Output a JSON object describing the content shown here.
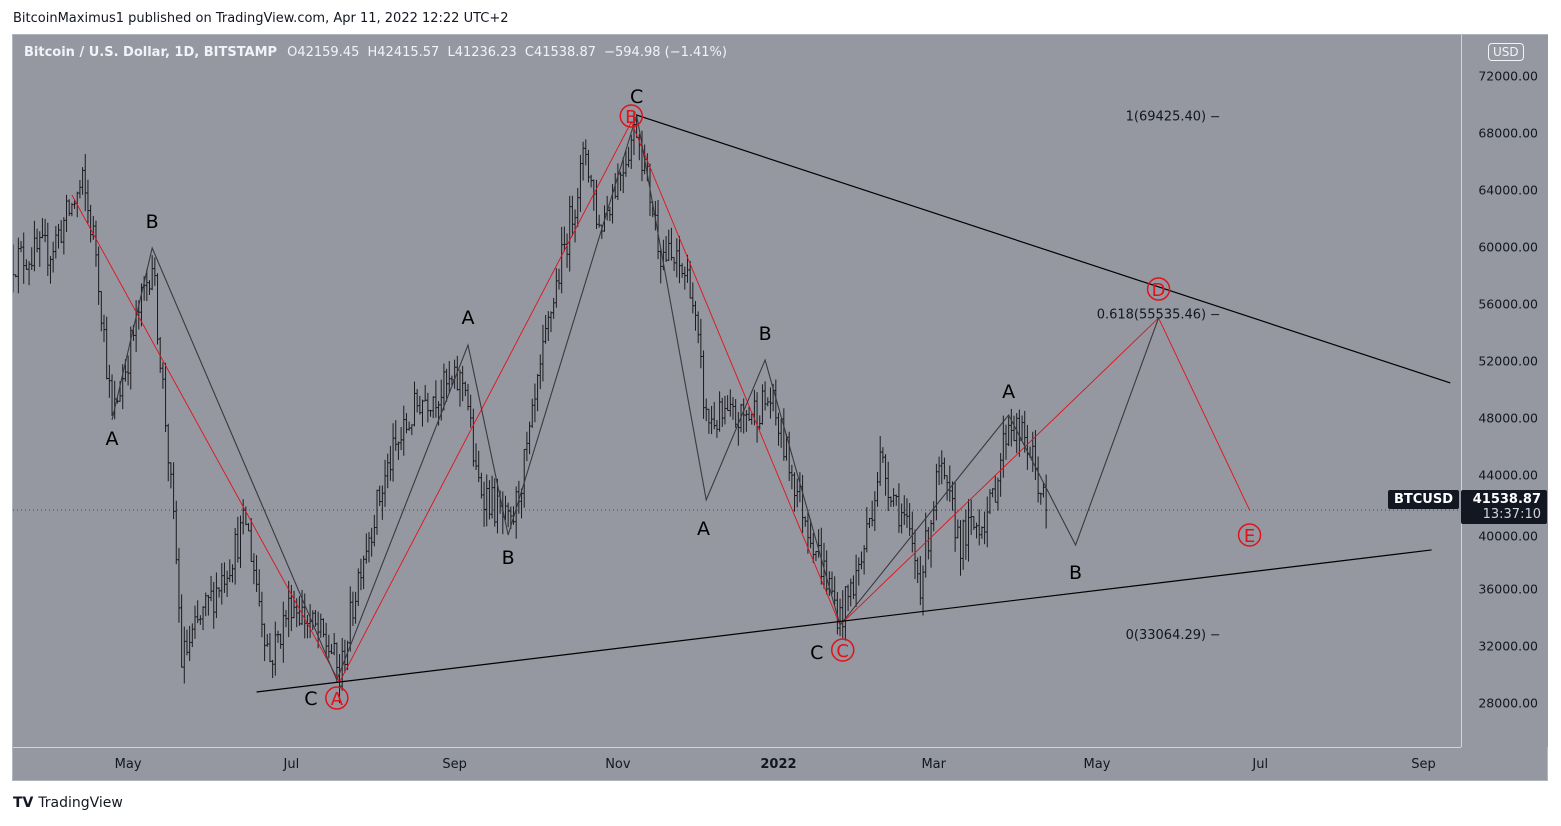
{
  "header": {
    "published": "BitcoinMaximus1 published on TradingView.com, Apr 11, 2022 12:22 UTC+2"
  },
  "legend": {
    "symbol": "Bitcoin / U.S. Dollar, 1D, BITSTAMP",
    "o_label": "O",
    "o": "42159.45",
    "h_label": "H",
    "h": "42415.57",
    "l_label": "L",
    "l": "41236.23",
    "c_label": "C",
    "c": "41538.87",
    "change": "−594.98 (−1.41%)"
  },
  "price_axis": {
    "currency": "USD",
    "ticks": [
      "72000.00",
      "68000.00",
      "64000.00",
      "60000.00",
      "56000.00",
      "52000.00",
      "48000.00",
      "44000.00",
      "40000.00",
      "36000.00",
      "32000.00",
      "28000.00"
    ]
  },
  "last_price": {
    "symbol": "BTCUSD",
    "price": "41538.87",
    "countdown": "13:37:10"
  },
  "footer": {
    "logo": "TradingView"
  },
  "colors": {
    "background": "#9598a1",
    "bars": "#1b1b1f",
    "red": "#e0121b",
    "wave": "#3a3a3e"
  },
  "chart_data": {
    "type": "ohlc",
    "title": "Bitcoin / U.S. Dollar, 1D, BITSTAMP",
    "x_unit": "days since 2021-05-01",
    "ylim": [
      24912,
      74877
    ],
    "xlim": [
      -43,
      498
    ],
    "time_ticks": [
      {
        "label": "May",
        "day": 0
      },
      {
        "label": "Jul",
        "day": 61
      },
      {
        "label": "Sep",
        "day": 122
      },
      {
        "label": "Nov",
        "day": 183
      },
      {
        "label": "2022",
        "day": 243
      },
      {
        "label": "Mar",
        "day": 301
      },
      {
        "label": "May",
        "day": 362
      },
      {
        "label": "Jul",
        "day": 423
      },
      {
        "label": "Sep",
        "day": 484
      }
    ],
    "price_ticks": [
      72000,
      68000,
      64000,
      60000,
      56000,
      52000,
      48000,
      44000,
      40000,
      36000,
      32000,
      28000
    ],
    "price_path": [
      [
        -43,
        59100
      ],
      [
        -29,
        59800
      ],
      [
        -17,
        64350
      ],
      [
        -12,
        59800
      ],
      [
        -6,
        47900
      ],
      [
        9,
        59100
      ],
      [
        14,
        47900
      ],
      [
        18,
        38000
      ],
      [
        20,
        31000
      ],
      [
        38,
        38000
      ],
      [
        44,
        40800
      ],
      [
        53,
        31000
      ],
      [
        61,
        35200
      ],
      [
        76,
        31700
      ],
      [
        79,
        29600
      ],
      [
        87,
        38000
      ],
      [
        98,
        45000
      ],
      [
        109,
        49300
      ],
      [
        126,
        50700
      ],
      [
        130,
        43700
      ],
      [
        143,
        40100
      ],
      [
        150,
        46500
      ],
      [
        158,
        55600
      ],
      [
        171,
        66800
      ],
      [
        176,
        61300
      ],
      [
        190,
        68600
      ],
      [
        199,
        59800
      ],
      [
        210,
        57700
      ],
      [
        216,
        47900
      ],
      [
        229,
        47900
      ],
      [
        240,
        49300
      ],
      [
        251,
        42300
      ],
      [
        266,
        33900
      ],
      [
        274,
        38000
      ],
      [
        281,
        45000
      ],
      [
        290,
        40800
      ],
      [
        296,
        36600
      ],
      [
        303,
        44300
      ],
      [
        311,
        39400
      ],
      [
        322,
        41500
      ],
      [
        329,
        47900
      ],
      [
        337,
        45700
      ],
      [
        343,
        41539
      ]
    ],
    "black_wave": [
      [
        -6,
        47860
      ],
      [
        9,
        59930
      ],
      [
        78,
        29610
      ],
      [
        127,
        53120
      ],
      [
        142,
        39790
      ],
      [
        190,
        69260
      ],
      [
        216,
        42250
      ],
      [
        238,
        52070
      ],
      [
        266,
        33470
      ],
      [
        329,
        48210
      ],
      [
        354,
        39090
      ],
      [
        385,
        55020
      ]
    ],
    "red_wave": [
      [
        -21,
        63650
      ],
      [
        79,
        29470
      ],
      [
        188,
        68770
      ],
      [
        266,
        33470
      ],
      [
        385,
        55020
      ],
      [
        419,
        41540
      ]
    ],
    "trendlines": [
      {
        "from": [
          190,
          69260
        ],
        "to": [
          494,
          50460
        ]
      },
      {
        "from": [
          48,
          28770
        ],
        "to": [
          487,
          38740
        ]
      }
    ],
    "wave_labels": [
      {
        "t": "A",
        "d": -6,
        "p": 46600
      },
      {
        "t": "B",
        "d": 9,
        "p": 61820
      },
      {
        "t": "C",
        "d": 78,
        "p": 28350
      },
      {
        "t": "A",
        "d": 127,
        "p": 55090
      },
      {
        "t": "B",
        "d": 142,
        "p": 38250
      },
      {
        "t": "C",
        "d": 190,
        "p": 70600
      },
      {
        "t": "A",
        "d": 215,
        "p": 40280
      },
      {
        "t": "B",
        "d": 238,
        "p": 53970
      },
      {
        "t": "C",
        "d": 267,
        "p": 31580
      },
      {
        "t": "A",
        "d": 329,
        "p": 49890
      },
      {
        "t": "B",
        "d": 354,
        "p": 37190
      }
    ],
    "red_labels": [
      {
        "t": "A",
        "d": 78,
        "p": 28350
      },
      {
        "t": "B",
        "d": 188,
        "p": 69190
      },
      {
        "t": "C",
        "d": 267,
        "p": 31720
      },
      {
        "t": "D",
        "d": 385,
        "p": 57050
      },
      {
        "t": "E",
        "d": 419,
        "p": 39790
      }
    ],
    "fib_levels": [
      {
        "label": "1(69425.40)",
        "p": 69425.4
      },
      {
        "label": "0.618(55535.46)",
        "p": 55535.46
      },
      {
        "label": "0(33064.29)",
        "p": 33064.29
      }
    ]
  }
}
